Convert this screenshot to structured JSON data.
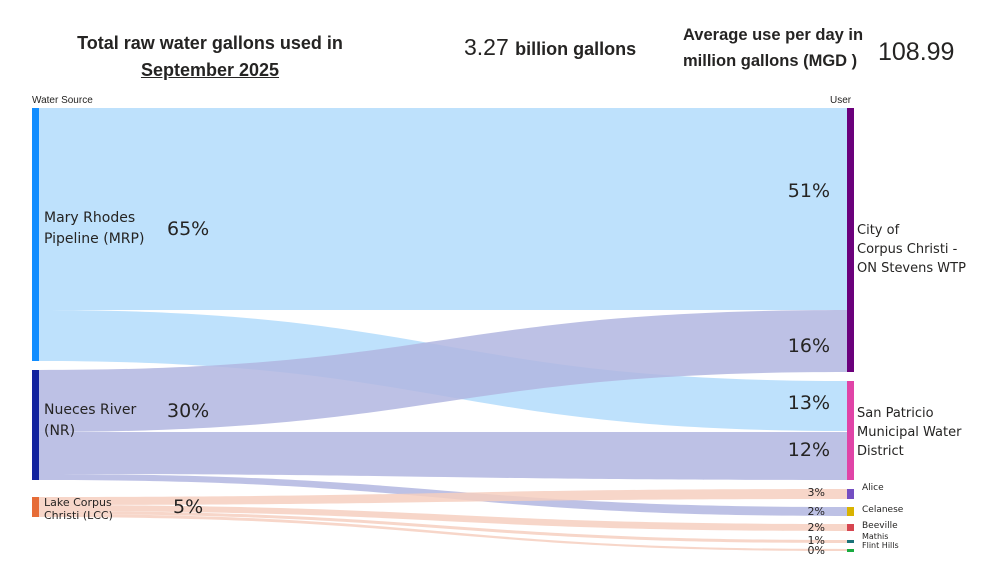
{
  "header": {
    "title_line1": "Total raw water gallons used in",
    "title_line2": "September 2025",
    "total_value": "3.27",
    "total_unit": "billion gallons",
    "avg_label_line1": "Average use per day in",
    "avg_label_line2": "million gallons (MGD )",
    "avg_value": "108.99"
  },
  "chart_data": {
    "type": "sankey",
    "source_header": "Water Source",
    "target_header": "User",
    "sources": [
      {
        "name": "Mary Rhodes Pipeline (MRP)",
        "lines": [
          "Mary Rhodes",
          "Pipeline (MRP)"
        ],
        "pct": "65%",
        "color": "#118DFF"
      },
      {
        "name": "Nueces River (NR)",
        "lines": [
          "Nueces River",
          "(NR)"
        ],
        "pct": "30%",
        "color": "#12239E"
      },
      {
        "name": "Lake Corpus Christi (LCC)",
        "lines": [
          "Lake Corpus",
          "Christi (LCC)"
        ],
        "pct": "5%",
        "color": "#E66C37"
      }
    ],
    "targets": [
      {
        "name": "City of Corpus Christi - ON Stevens WTP",
        "lines": [
          "City of",
          "Corpus Christi -",
          "ON Stevens WTP"
        ],
        "color": "#6B007B"
      },
      {
        "name": "San Patricio Municipal Water District",
        "lines": [
          "San Patricio",
          "Municipal Water",
          "District"
        ],
        "color": "#E044A7"
      },
      {
        "name": "Alice",
        "lines": [
          "Alice"
        ],
        "color": "#744EC2"
      },
      {
        "name": "Celanese",
        "lines": [
          "Celanese"
        ],
        "color": "#D9B300"
      },
      {
        "name": "Beeville",
        "lines": [
          "Beeville"
        ],
        "color": "#D64550"
      },
      {
        "name": "Mathis",
        "lines": [
          "Mathis"
        ],
        "color": "#197278"
      },
      {
        "name": "Flint Hills",
        "lines": [
          "Flint Hills"
        ],
        "color": "#1AAB40"
      }
    ],
    "links": [
      {
        "source": 0,
        "target": 0,
        "pct": "51%"
      },
      {
        "source": 0,
        "target": 1,
        "pct": "13%"
      },
      {
        "source": 1,
        "target": 0,
        "pct": "16%"
      },
      {
        "source": 1,
        "target": 1,
        "pct": "12%"
      },
      {
        "source": 1,
        "target": 3,
        "pct": "2%"
      },
      {
        "source": 2,
        "target": 2,
        "pct": "3%"
      },
      {
        "source": 2,
        "target": 4,
        "pct": "2%"
      },
      {
        "source": 2,
        "target": 5,
        "pct": "1%"
      },
      {
        "source": 2,
        "target": 6,
        "pct": "0%"
      }
    ],
    "link_colors": [
      "#B3DCFB",
      "#B2B6E0",
      "#F6CFC0"
    ]
  }
}
